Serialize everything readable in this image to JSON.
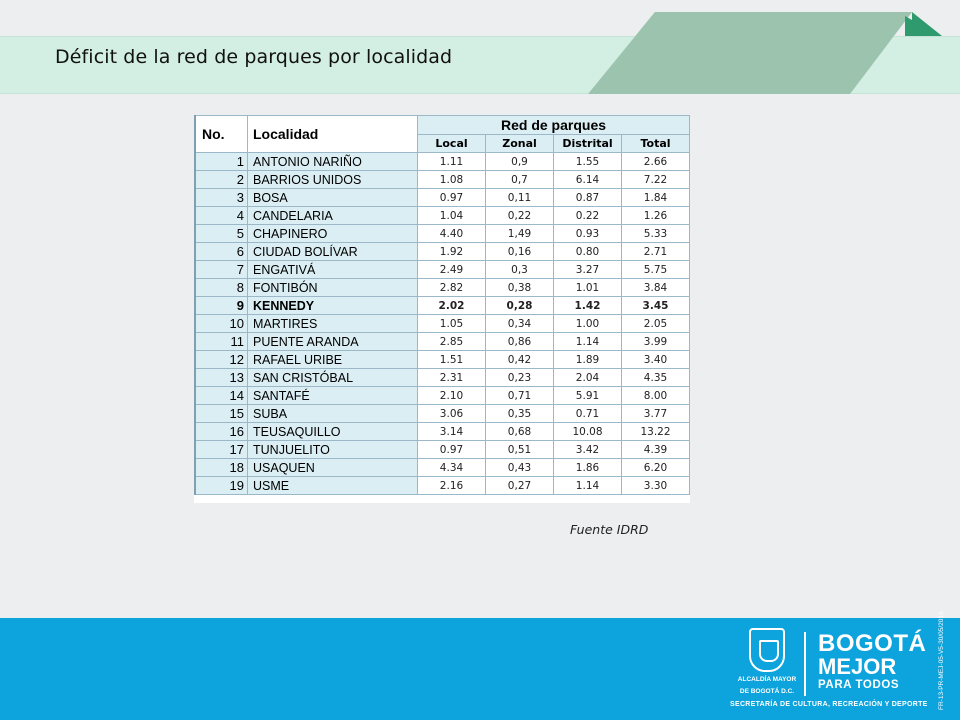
{
  "title": "Déficit de la red de parques por localidad",
  "table": {
    "headers": {
      "no": "No.",
      "localidad": "Localidad",
      "group": "Red de parques"
    },
    "subheaders": [
      "Local",
      "Zonal",
      "Distrital",
      "Total"
    ],
    "rows": [
      {
        "no": "1",
        "name": "ANTONIO NARIÑO",
        "local": "1.11",
        "zonal": "0,9",
        "distrital": "1.55",
        "total": "2.66"
      },
      {
        "no": "2",
        "name": "BARRIOS UNIDOS",
        "local": "1.08",
        "zonal": "0,7",
        "distrital": "6.14",
        "total": "7.22"
      },
      {
        "no": "3",
        "name": "BOSA",
        "local": "0.97",
        "zonal": "0,11",
        "distrital": "0.87",
        "total": "1.84"
      },
      {
        "no": "4",
        "name": "CANDELARIA",
        "local": "1.04",
        "zonal": "0,22",
        "distrital": "0.22",
        "total": "1.26"
      },
      {
        "no": "5",
        "name": "CHAPINERO",
        "local": "4.40",
        "zonal": "1,49",
        "distrital": "0.93",
        "total": "5.33"
      },
      {
        "no": "6",
        "name": "CIUDAD BOLÍVAR",
        "local": "1.92",
        "zonal": "0,16",
        "distrital": "0.80",
        "total": "2.71"
      },
      {
        "no": "7",
        "name": "ENGATIVÁ",
        "local": "2.49",
        "zonal": "0,3",
        "distrital": "3.27",
        "total": "5.75"
      },
      {
        "no": "8",
        "name": "FONTIBÓN",
        "local": "2.82",
        "zonal": "0,38",
        "distrital": "1.01",
        "total": "3.84"
      },
      {
        "no": "9",
        "name": "KENNEDY",
        "local": "2.02",
        "zonal": "0,28",
        "distrital": "1.42",
        "total": "3.45"
      },
      {
        "no": "10",
        "name": "MARTIRES",
        "local": "1.05",
        "zonal": "0,34",
        "distrital": "1.00",
        "total": "2.05"
      },
      {
        "no": "11",
        "name": "PUENTE ARANDA",
        "local": "2.85",
        "zonal": "0,86",
        "distrital": "1.14",
        "total": "3.99"
      },
      {
        "no": "12",
        "name": "RAFAEL URIBE",
        "local": "1.51",
        "zonal": "0,42",
        "distrital": "1.89",
        "total": "3.40"
      },
      {
        "no": "13",
        "name": "SAN CRISTÓBAL",
        "local": "2.31",
        "zonal": "0,23",
        "distrital": "2.04",
        "total": "4.35"
      },
      {
        "no": "14",
        "name": "SANTAFÉ",
        "local": "2.10",
        "zonal": "0,71",
        "distrital": "5.91",
        "total": "8.00"
      },
      {
        "no": "15",
        "name": "SUBA",
        "local": "3.06",
        "zonal": "0,35",
        "distrital": "0.71",
        "total": "3.77"
      },
      {
        "no": "16",
        "name": "TEUSAQUILLO",
        "local": "3.14",
        "zonal": "0,68",
        "distrital": "10.08",
        "total": "13.22"
      },
      {
        "no": "17",
        "name": "TUNJUELITO",
        "local": "0.97",
        "zonal": "0,51",
        "distrital": "3.42",
        "total": "4.39"
      },
      {
        "no": "18",
        "name": "USAQUEN",
        "local": "4.34",
        "zonal": "0,43",
        "distrital": "1.86",
        "total": "6.20"
      },
      {
        "no": "19",
        "name": "USME",
        "local": "2.16",
        "zonal": "0,27",
        "distrital": "1.14",
        "total": "3.30"
      }
    ],
    "bold_row": "9"
  },
  "source": "Fuente IDRD",
  "footer": {
    "alcaldia_line1": "ALCALDÍA MAYOR",
    "alcaldia_line2": "DE BOGOTÁ D.C.",
    "bogota": "BOGOTÁ",
    "mejor": "MEJOR",
    "para_todos": "PARA TODOS",
    "secretaria": "SECRETARÍA DE CULTURA, RECREACIÓN Y DEPORTE",
    "code": "FR-13-PR-MEJ-05-V5-30/05/2016"
  },
  "colors": {
    "title_band": "#d3eee2",
    "deco_dark": "#8fbfa8",
    "deco_green": "#2e9a6e",
    "footer": "#0da3dc",
    "cell_fill": "#daeef3"
  }
}
